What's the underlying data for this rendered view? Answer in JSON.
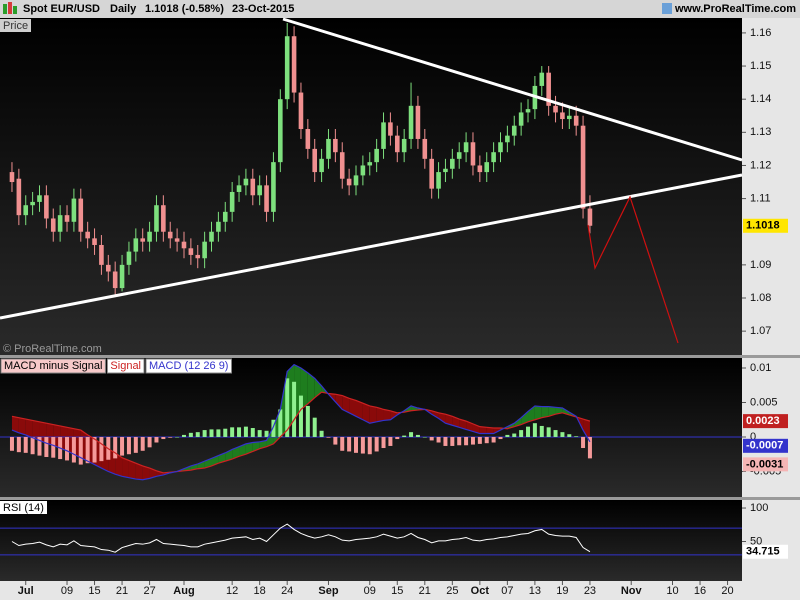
{
  "header": {
    "symbol": "Spot EUR/USD",
    "period": "Daily",
    "quote": "1.1018 (-0.58%)",
    "date": "23-Oct-2015",
    "site": "www.ProRealTime.com"
  },
  "chart_data": [
    {
      "type": "candlestick",
      "title": "Price",
      "watermark": "© ProRealTime.com",
      "xlim": [
        -1.74,
        106.1
      ],
      "ylim": [
        1.0628,
        1.1645
      ],
      "yticks": [
        1.07,
        1.08,
        1.09,
        1.11,
        1.12,
        1.13,
        1.14,
        1.15,
        1.16
      ],
      "up_color": "#7ee07e",
      "down_color": "#f09090",
      "open": [
        1.118,
        1.116,
        1.105,
        1.108,
        1.109,
        1.111,
        1.104,
        1.1,
        1.105,
        1.103,
        1.11,
        1.1,
        1.098,
        1.096,
        1.09,
        1.088,
        1.083,
        1.09,
        1.094,
        1.098,
        1.097,
        1.1,
        1.108,
        1.1,
        1.098,
        1.097,
        1.095,
        1.093,
        1.092,
        1.097,
        1.1,
        1.103,
        1.106,
        1.112,
        1.114,
        1.116,
        1.111,
        1.114,
        1.106,
        1.121,
        1.14,
        1.159,
        1.142,
        1.131,
        1.125,
        1.118,
        1.122,
        1.128,
        1.124,
        1.116,
        1.114,
        1.117,
        1.12,
        1.121,
        1.125,
        1.133,
        1.129,
        1.124,
        1.128,
        1.138,
        1.128,
        1.122,
        1.113,
        1.118,
        1.119,
        1.122,
        1.124,
        1.127,
        1.12,
        1.118,
        1.121,
        1.124,
        1.127,
        1.129,
        1.132,
        1.136,
        1.137,
        1.144,
        1.148,
        1.138,
        1.136,
        1.134,
        1.135,
        1.132,
        1.107
      ],
      "high": [
        1.121,
        1.119,
        1.111,
        1.112,
        1.114,
        1.114,
        1.107,
        1.108,
        1.108,
        1.113,
        1.113,
        1.103,
        1.101,
        1.099,
        1.093,
        1.091,
        1.093,
        1.097,
        1.101,
        1.101,
        1.103,
        1.111,
        1.111,
        1.103,
        1.101,
        1.1,
        1.098,
        1.096,
        1.1,
        1.103,
        1.106,
        1.109,
        1.115,
        1.117,
        1.119,
        1.119,
        1.117,
        1.117,
        1.124,
        1.143,
        1.163,
        1.162,
        1.145,
        1.134,
        1.128,
        1.125,
        1.131,
        1.131,
        1.127,
        1.119,
        1.12,
        1.123,
        1.124,
        1.128,
        1.136,
        1.136,
        1.132,
        1.131,
        1.145,
        1.141,
        1.131,
        1.125,
        1.121,
        1.122,
        1.125,
        1.127,
        1.13,
        1.13,
        1.123,
        1.124,
        1.127,
        1.13,
        1.132,
        1.135,
        1.139,
        1.14,
        1.147,
        1.15,
        1.15,
        1.141,
        1.139,
        1.138,
        1.138,
        1.135,
        1.111
      ],
      "low": [
        1.112,
        1.102,
        1.102,
        1.105,
        1.106,
        1.101,
        1.097,
        1.097,
        1.1,
        1.1,
        1.097,
        1.095,
        1.093,
        1.087,
        1.085,
        1.081,
        1.082,
        1.087,
        1.091,
        1.094,
        1.094,
        1.097,
        1.097,
        1.095,
        1.094,
        1.092,
        1.09,
        1.089,
        1.089,
        1.094,
        1.097,
        1.1,
        1.103,
        1.109,
        1.111,
        1.108,
        1.108,
        1.103,
        1.103,
        1.118,
        1.137,
        1.139,
        1.128,
        1.122,
        1.115,
        1.115,
        1.119,
        1.121,
        1.113,
        1.111,
        1.111,
        1.114,
        1.117,
        1.118,
        1.122,
        1.126,
        1.121,
        1.121,
        1.125,
        1.125,
        1.119,
        1.11,
        1.11,
        1.115,
        1.116,
        1.119,
        1.121,
        1.117,
        1.115,
        1.115,
        1.118,
        1.121,
        1.124,
        1.126,
        1.129,
        1.133,
        1.134,
        1.141,
        1.135,
        1.133,
        1.131,
        1.131,
        1.129,
        1.104,
        1.0995
      ],
      "close": [
        1.115,
        1.105,
        1.108,
        1.109,
        1.111,
        1.104,
        1.1,
        1.105,
        1.103,
        1.11,
        1.1,
        1.098,
        1.096,
        1.09,
        1.088,
        1.083,
        1.09,
        1.094,
        1.098,
        1.097,
        1.1,
        1.108,
        1.1,
        1.098,
        1.097,
        1.095,
        1.093,
        1.092,
        1.097,
        1.1,
        1.103,
        1.106,
        1.112,
        1.114,
        1.116,
        1.111,
        1.114,
        1.106,
        1.121,
        1.14,
        1.159,
        1.142,
        1.131,
        1.125,
        1.118,
        1.122,
        1.128,
        1.124,
        1.116,
        1.114,
        1.117,
        1.12,
        1.121,
        1.125,
        1.133,
        1.129,
        1.124,
        1.128,
        1.138,
        1.128,
        1.122,
        1.113,
        1.118,
        1.119,
        1.122,
        1.124,
        1.127,
        1.12,
        1.118,
        1.121,
        1.124,
        1.127,
        1.129,
        1.132,
        1.136,
        1.137,
        1.144,
        1.148,
        1.138,
        1.136,
        1.134,
        1.135,
        1.132,
        1.107,
        1.1018
      ]
    },
    {
      "type": "macd",
      "xlim": [
        -1.74,
        106.1
      ],
      "ylim": [
        -0.0087,
        0.01145
      ],
      "yticks": [
        0.01,
        0.005,
        0,
        -0.005
      ],
      "fill_above": "#1e7d1e",
      "fill_below": "#8a0a0a",
      "zero_line_color": "#3333cc",
      "series": [
        {
          "name": "MACD minus Signal",
          "up_color": "#8ff08f",
          "down_color": "#f59a9a",
          "values": [
            -0.002,
            -0.0022,
            -0.0023,
            -0.0025,
            -0.0027,
            -0.0029,
            -0.003,
            -0.0032,
            -0.0034,
            -0.0037,
            -0.004,
            -0.0038,
            -0.0037,
            -0.0035,
            -0.0033,
            -0.0031,
            -0.0027,
            -0.0025,
            -0.0023,
            -0.002,
            -0.0015,
            -0.0008,
            -0.0003,
            -0.0001,
            0.0,
            0.0003,
            0.0006,
            0.0007,
            0.001,
            0.0011,
            0.0011,
            0.0012,
            0.0014,
            0.0014,
            0.0015,
            0.0013,
            0.001,
            0.0009,
            0.0025,
            0.004,
            0.0085,
            0.008,
            0.006,
            0.0045,
            0.0028,
            0.0009,
            -0.0001,
            -0.0011,
            -0.002,
            -0.0021,
            -0.0023,
            -0.0024,
            -0.0025,
            -0.0021,
            -0.0016,
            -0.0013,
            -0.0003,
            0.0002,
            0.0007,
            0.0003,
            0.0,
            -0.0005,
            -0.0008,
            -0.0013,
            -0.0013,
            -0.0012,
            -0.0012,
            -0.0011,
            -0.001,
            -0.0009,
            -0.0008,
            -0.0003,
            0.0003,
            0.0005,
            0.001,
            0.0015,
            0.002,
            0.0016,
            0.0014,
            0.001,
            0.0007,
            0.0004,
            0.0001,
            -0.0016,
            -0.0031
          ]
        },
        {
          "name": "Signal",
          "color": "#cc2222",
          "values": [
            0.003,
            0.0028,
            0.0026,
            0.0024,
            0.0022,
            0.002,
            0.0018,
            0.0016,
            0.0014,
            0.0012,
            0.001,
            0.0003,
            -0.0003,
            -0.001,
            -0.0017,
            -0.0023,
            -0.003,
            -0.0034,
            -0.0038,
            -0.0042,
            -0.0045,
            -0.0049,
            -0.0052,
            -0.0051,
            -0.005,
            -0.0049,
            -0.0048,
            -0.0046,
            -0.0045,
            -0.0042,
            -0.0038,
            -0.0035,
            -0.0032,
            -0.0028,
            -0.0025,
            -0.0021,
            -0.0017,
            -0.0014,
            -0.001,
            0.0,
            0.001,
            0.0025,
            0.004,
            0.0048,
            0.0057,
            0.0065,
            0.0063,
            0.0062,
            0.006,
            0.0056,
            0.0053,
            0.0049,
            0.0045,
            0.0043,
            0.004,
            0.0038,
            0.0035,
            0.0036,
            0.0038,
            0.0039,
            0.004,
            0.0038,
            0.0035,
            0.0033,
            0.003,
            0.0026,
            0.0023,
            0.0019,
            0.0015,
            0.0014,
            0.0013,
            0.0013,
            0.0012,
            0.0015,
            0.0018,
            0.0022,
            0.0025,
            0.0028,
            0.003,
            0.0033,
            0.0035,
            0.0032,
            0.0029,
            0.0026,
            0.0023
          ]
        },
        {
          "name": "MACD (12 26 9)",
          "color": "#3333cc",
          "values": [
            0.001,
            0.0006,
            0.0003,
            -0.0001,
            -0.0005,
            -0.0009,
            -0.0012,
            -0.0016,
            -0.002,
            -0.0025,
            -0.003,
            -0.0035,
            -0.004,
            -0.0045,
            -0.005,
            -0.0054,
            -0.0057,
            -0.0059,
            -0.0061,
            -0.0062,
            -0.006,
            -0.0057,
            -0.0055,
            -0.0052,
            -0.005,
            -0.0046,
            -0.0042,
            -0.0039,
            -0.0035,
            -0.0031,
            -0.0027,
            -0.0023,
            -0.0018,
            -0.0014,
            -0.001,
            -0.0008,
            -0.0007,
            -0.0005,
            0.0015,
            0.004,
            0.0095,
            0.0105,
            0.01,
            0.0093,
            0.0085,
            0.0074,
            0.0062,
            0.0051,
            0.004,
            0.0035,
            0.003,
            0.0025,
            0.002,
            0.0022,
            0.0024,
            0.0025,
            0.0032,
            0.0038,
            0.0045,
            0.0042,
            0.004,
            0.0033,
            0.0027,
            0.002,
            0.0017,
            0.0014,
            0.0011,
            0.0008,
            0.0005,
            0.0005,
            0.0005,
            0.001,
            0.0015,
            0.002,
            0.0028,
            0.0037,
            0.0045,
            0.0044,
            0.0044,
            0.0043,
            0.0042,
            0.0036,
            0.003,
            0.001,
            -0.0007
          ]
        }
      ]
    },
    {
      "type": "rsi",
      "title": "RSI (14)",
      "xlim": [
        -1.74,
        106.1
      ],
      "ylim": [
        -9,
        112
      ],
      "yticks": [
        100,
        50
      ],
      "levels": [
        70,
        30
      ],
      "level_color": "#3333cc",
      "color": "#ffffff",
      "values": [
        50,
        44,
        46,
        47,
        49,
        45,
        42,
        46,
        45,
        51,
        44,
        43,
        42,
        38,
        37,
        34,
        41,
        44,
        47,
        46,
        48,
        53,
        47,
        46,
        45,
        44,
        42,
        42,
        46,
        48,
        50,
        52,
        55,
        56,
        57,
        53,
        55,
        50,
        60,
        70,
        76,
        68,
        62,
        58,
        55,
        57,
        60,
        57,
        52,
        51,
        53,
        54,
        55,
        57,
        61,
        58,
        55,
        57,
        62,
        56,
        53,
        48,
        51,
        51,
        53,
        54,
        56,
        52,
        51,
        53,
        54,
        56,
        57,
        59,
        61,
        62,
        66,
        68,
        61,
        59,
        58,
        58,
        56,
        41,
        34.715
      ],
      "xticks": [
        {
          "value": 2,
          "label": "Jul"
        },
        {
          "value": 8,
          "label": "09"
        },
        {
          "value": 12,
          "label": "15"
        },
        {
          "value": 16,
          "label": "21"
        },
        {
          "value": 20,
          "label": "27"
        },
        {
          "value": 25,
          "label": "Aug"
        },
        {
          "value": 32,
          "label": "12"
        },
        {
          "value": 36,
          "label": "18"
        },
        {
          "value": 40,
          "label": "24"
        },
        {
          "value": 46,
          "label": "Sep"
        },
        {
          "value": 52,
          "label": "09"
        },
        {
          "value": 56,
          "label": "15"
        },
        {
          "value": 60,
          "label": "21"
        },
        {
          "value": 64,
          "label": "25"
        },
        {
          "value": 68,
          "label": "Oct"
        },
        {
          "value": 72,
          "label": "07"
        },
        {
          "value": 76,
          "label": "13"
        },
        {
          "value": 80,
          "label": "19"
        },
        {
          "value": 84,
          "label": "23"
        },
        {
          "value": 90,
          "label": "Nov"
        },
        {
          "value": 96,
          "label": "10"
        },
        {
          "value": 100,
          "label": "16"
        },
        {
          "value": 104,
          "label": "20"
        }
      ]
    }
  ]
}
